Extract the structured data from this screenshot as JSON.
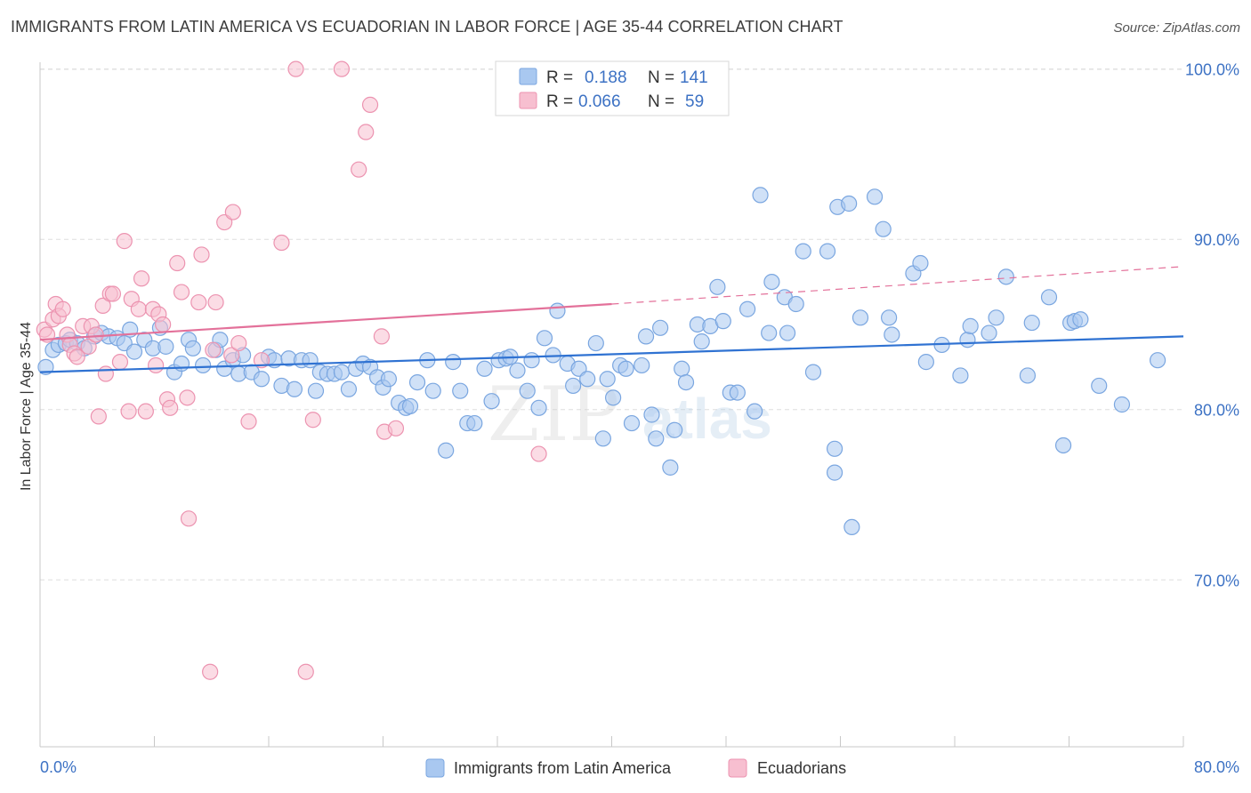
{
  "title": "IMMIGRANTS FROM LATIN AMERICA VS ECUADORIAN IN LABOR FORCE | AGE 35-44 CORRELATION CHART",
  "source": "Source: ZipAtlas.com",
  "watermark": {
    "zip": "ZIP",
    "atlas": "atlas"
  },
  "colors": {
    "blue_fill": "#a9c8f0",
    "blue_stroke": "#7aa6e0",
    "blue_line": "#2f72d2",
    "pink_fill": "#f7bfd0",
    "pink_stroke": "#ec93b0",
    "pink_line": "#e3719a",
    "axis_text": "#3d72c4",
    "grid": "#dddddd"
  },
  "chart_data": {
    "type": "scatter",
    "title": "IMMIGRANTS FROM LATIN AMERICA VS ECUADORIAN IN LABOR FORCE | AGE 35-44 CORRELATION CHART",
    "ylabel": "In Labor Force | Age 35-44",
    "xlabel": "",
    "xlim": [
      0,
      80
    ],
    "ylim": [
      60.2,
      100.4
    ],
    "x_tick_labels": [
      "0.0%",
      "80.0%"
    ],
    "y_ticks": [
      70,
      80,
      90,
      100
    ],
    "y_tick_labels": [
      "70.0%",
      "80.0%",
      "90.0%",
      "100.0%"
    ],
    "grid": "horizontal dashed",
    "legend_placement": "bottom",
    "stats": [
      {
        "r_label": "R =",
        "r": "0.188",
        "n_label": "N =",
        "n": "141"
      },
      {
        "r_label": "R =",
        "r": "0.066",
        "n_label": "N =",
        "n": "59"
      }
    ],
    "series": [
      {
        "name": "Immigrants from Latin America",
        "color": "blue",
        "trend": {
          "x": [
            0,
            80
          ],
          "y": [
            82.2,
            84.3
          ],
          "style": "solid"
        },
        "points": [
          [
            0.4,
            82.5
          ],
          [
            0.9,
            83.5
          ],
          [
            1.3,
            83.8
          ],
          [
            1.8,
            83.9
          ],
          [
            2.1,
            84.1
          ],
          [
            2.6,
            83.9
          ],
          [
            3.1,
            83.6
          ],
          [
            3.8,
            84.3
          ],
          [
            4.3,
            84.5
          ],
          [
            4.8,
            84.3
          ],
          [
            5.4,
            84.2
          ],
          [
            5.9,
            83.9
          ],
          [
            6.3,
            84.7
          ],
          [
            6.6,
            83.4
          ],
          [
            7.3,
            84.1
          ],
          [
            7.9,
            83.6
          ],
          [
            8.4,
            84.8
          ],
          [
            8.8,
            83.7
          ],
          [
            9.4,
            82.2
          ],
          [
            9.9,
            82.7
          ],
          [
            10.4,
            84.1
          ],
          [
            10.7,
            83.6
          ],
          [
            11.4,
            82.6
          ],
          [
            12.3,
            83.5
          ],
          [
            12.6,
            84.1
          ],
          [
            12.9,
            82.4
          ],
          [
            13.5,
            82.9
          ],
          [
            13.9,
            82.1
          ],
          [
            14.2,
            83.2
          ],
          [
            14.8,
            82.2
          ],
          [
            15.5,
            81.8
          ],
          [
            16.0,
            83.1
          ],
          [
            16.4,
            82.9
          ],
          [
            16.9,
            81.4
          ],
          [
            17.4,
            83.0
          ],
          [
            17.8,
            81.2
          ],
          [
            18.3,
            82.9
          ],
          [
            18.9,
            82.9
          ],
          [
            19.3,
            81.1
          ],
          [
            19.6,
            82.2
          ],
          [
            20.1,
            82.1
          ],
          [
            20.6,
            82.1
          ],
          [
            21.1,
            82.2
          ],
          [
            21.6,
            81.2
          ],
          [
            22.1,
            82.4
          ],
          [
            22.6,
            82.7
          ],
          [
            23.1,
            82.5
          ],
          [
            23.6,
            81.9
          ],
          [
            24.0,
            81.3
          ],
          [
            24.4,
            81.8
          ],
          [
            25.1,
            80.4
          ],
          [
            25.6,
            80.1
          ],
          [
            25.9,
            80.2
          ],
          [
            26.4,
            81.6
          ],
          [
            27.1,
            82.9
          ],
          [
            27.5,
            81.1
          ],
          [
            28.4,
            77.6
          ],
          [
            28.9,
            82.8
          ],
          [
            29.4,
            81.1
          ],
          [
            29.9,
            79.2
          ],
          [
            30.4,
            79.2
          ],
          [
            31.1,
            82.4
          ],
          [
            31.6,
            80.5
          ],
          [
            32.1,
            82.9
          ],
          [
            32.6,
            83.0
          ],
          [
            32.9,
            83.1
          ],
          [
            33.4,
            82.3
          ],
          [
            34.1,
            81.1
          ],
          [
            34.4,
            82.9
          ],
          [
            34.9,
            80.1
          ],
          [
            35.3,
            84.2
          ],
          [
            35.9,
            83.2
          ],
          [
            36.2,
            85.8
          ],
          [
            36.9,
            82.7
          ],
          [
            37.3,
            81.4
          ],
          [
            37.7,
            82.4
          ],
          [
            38.3,
            81.8
          ],
          [
            38.9,
            83.9
          ],
          [
            39.4,
            78.3
          ],
          [
            39.7,
            81.8
          ],
          [
            40.1,
            80.7
          ],
          [
            40.6,
            82.6
          ],
          [
            41.0,
            82.4
          ],
          [
            41.4,
            79.2
          ],
          [
            42.1,
            82.6
          ],
          [
            42.4,
            84.3
          ],
          [
            42.8,
            79.7
          ],
          [
            43.1,
            78.3
          ],
          [
            43.4,
            84.8
          ],
          [
            44.1,
            76.6
          ],
          [
            44.4,
            78.8
          ],
          [
            44.9,
            82.4
          ],
          [
            45.2,
            81.6
          ],
          [
            46.0,
            85.0
          ],
          [
            46.3,
            84.0
          ],
          [
            46.9,
            84.9
          ],
          [
            47.4,
            87.2
          ],
          [
            47.8,
            85.2
          ],
          [
            48.3,
            81.0
          ],
          [
            48.8,
            81.0
          ],
          [
            49.5,
            85.9
          ],
          [
            50.0,
            79.9
          ],
          [
            50.4,
            92.6
          ],
          [
            51.0,
            84.5
          ],
          [
            51.2,
            87.5
          ],
          [
            52.1,
            86.6
          ],
          [
            52.3,
            84.5
          ],
          [
            52.9,
            86.2
          ],
          [
            53.4,
            89.3
          ],
          [
            54.1,
            82.2
          ],
          [
            55.1,
            89.3
          ],
          [
            55.6,
            76.3
          ],
          [
            55.6,
            77.7
          ],
          [
            55.8,
            91.9
          ],
          [
            56.6,
            92.1
          ],
          [
            56.8,
            73.1
          ],
          [
            57.4,
            85.4
          ],
          [
            58.4,
            92.5
          ],
          [
            59.0,
            90.6
          ],
          [
            59.4,
            85.4
          ],
          [
            59.6,
            84.4
          ],
          [
            61.1,
            88.0
          ],
          [
            61.6,
            88.6
          ],
          [
            62.0,
            82.8
          ],
          [
            63.1,
            83.8
          ],
          [
            64.4,
            82.0
          ],
          [
            64.9,
            84.1
          ],
          [
            65.1,
            84.9
          ],
          [
            66.4,
            84.5
          ],
          [
            66.9,
            85.4
          ],
          [
            67.6,
            87.8
          ],
          [
            69.1,
            82.0
          ],
          [
            69.4,
            85.1
          ],
          [
            70.6,
            86.6
          ],
          [
            71.6,
            77.9
          ],
          [
            72.1,
            85.1
          ],
          [
            72.4,
            85.2
          ],
          [
            72.8,
            85.3
          ],
          [
            74.1,
            81.4
          ],
          [
            75.7,
            80.3
          ],
          [
            78.2,
            82.9
          ]
        ]
      },
      {
        "name": "Ecuadorians",
        "color": "pink",
        "trend": {
          "x": [
            0,
            40,
            80
          ],
          "y": [
            84.1,
            86.2,
            88.4
          ],
          "style": "solid-then-dashed"
        },
        "points": [
          [
            0.3,
            84.7
          ],
          [
            0.5,
            84.4
          ],
          [
            0.9,
            85.3
          ],
          [
            1.1,
            86.2
          ],
          [
            1.3,
            85.5
          ],
          [
            1.6,
            85.9
          ],
          [
            1.9,
            84.4
          ],
          [
            2.1,
            83.8
          ],
          [
            2.4,
            83.3
          ],
          [
            2.6,
            83.1
          ],
          [
            3.0,
            84.9
          ],
          [
            3.4,
            83.7
          ],
          [
            3.6,
            84.9
          ],
          [
            3.9,
            84.4
          ],
          [
            4.1,
            79.6
          ],
          [
            4.4,
            86.1
          ],
          [
            4.6,
            82.1
          ],
          [
            4.9,
            86.8
          ],
          [
            5.1,
            86.8
          ],
          [
            5.6,
            82.8
          ],
          [
            5.9,
            89.9
          ],
          [
            6.2,
            79.9
          ],
          [
            6.4,
            86.5
          ],
          [
            6.9,
            85.9
          ],
          [
            7.1,
            87.7
          ],
          [
            7.4,
            79.9
          ],
          [
            7.9,
            85.9
          ],
          [
            8.1,
            82.6
          ],
          [
            8.3,
            85.6
          ],
          [
            8.6,
            85.0
          ],
          [
            8.9,
            80.6
          ],
          [
            9.1,
            80.1
          ],
          [
            9.6,
            88.6
          ],
          [
            9.9,
            86.9
          ],
          [
            10.3,
            80.7
          ],
          [
            10.4,
            73.6
          ],
          [
            11.1,
            86.3
          ],
          [
            11.3,
            89.1
          ],
          [
            11.9,
            64.6
          ],
          [
            12.1,
            83.5
          ],
          [
            12.3,
            86.3
          ],
          [
            12.9,
            91.0
          ],
          [
            13.4,
            83.2
          ],
          [
            13.5,
            91.6
          ],
          [
            13.9,
            83.9
          ],
          [
            14.6,
            79.3
          ],
          [
            15.5,
            82.9
          ],
          [
            16.9,
            89.8
          ],
          [
            17.9,
            100.0
          ],
          [
            18.6,
            64.6
          ],
          [
            19.1,
            79.4
          ],
          [
            21.1,
            100.0
          ],
          [
            22.3,
            94.1
          ],
          [
            22.8,
            96.3
          ],
          [
            23.1,
            97.9
          ],
          [
            23.9,
            84.3
          ],
          [
            24.1,
            78.7
          ],
          [
            24.9,
            78.9
          ],
          [
            34.9,
            77.4
          ]
        ]
      }
    ]
  }
}
